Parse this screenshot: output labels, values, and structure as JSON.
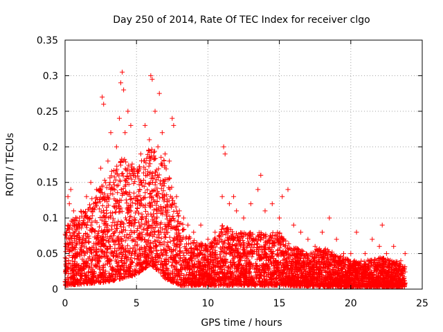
{
  "chart_data": {
    "type": "scatter",
    "title": "Day 250 of 2014, Rate Of TEC Index for receiver clgo",
    "xlabel": "GPS time / hours",
    "ylabel": "ROTI / TECUs",
    "xlim": [
      0,
      25
    ],
    "ylim": [
      0,
      0.35
    ],
    "grid": true,
    "marker": "+",
    "color": "#ff0000",
    "x_ticks": [
      0,
      5,
      10,
      15,
      20,
      25
    ],
    "x_tick_labels": [
      "0",
      "5",
      "10",
      "15",
      "20",
      "25"
    ],
    "y_ticks": [
      0,
      0.05,
      0.1,
      0.15,
      0.2,
      0.25,
      0.3,
      0.35
    ],
    "y_tick_labels": [
      "0",
      "0.05",
      "0.1",
      "0.15",
      "0.2",
      "0.25",
      "0.3",
      "0.35"
    ],
    "series": [
      {
        "name": "ROTI",
        "points": [
          [
            0.1,
            0.08
          ],
          [
            0.2,
            0.13
          ],
          [
            0.3,
            0.12
          ],
          [
            0.4,
            0.14
          ],
          [
            0.6,
            0.11
          ],
          [
            0.8,
            0.09
          ],
          [
            1.0,
            0.1
          ],
          [
            1.2,
            0.09
          ],
          [
            1.5,
            0.13
          ],
          [
            1.8,
            0.15
          ],
          [
            2.0,
            0.12
          ],
          [
            2.2,
            0.14
          ],
          [
            2.5,
            0.17
          ],
          [
            2.6,
            0.27
          ],
          [
            2.7,
            0.26
          ],
          [
            3.0,
            0.18
          ],
          [
            3.2,
            0.22
          ],
          [
            3.4,
            0.15
          ],
          [
            3.6,
            0.2
          ],
          [
            3.8,
            0.24
          ],
          [
            3.9,
            0.29
          ],
          [
            4.0,
            0.305
          ],
          [
            4.1,
            0.28
          ],
          [
            4.2,
            0.22
          ],
          [
            4.4,
            0.25
          ],
          [
            4.6,
            0.23
          ],
          [
            4.8,
            0.16
          ],
          [
            5.0,
            0.13
          ],
          [
            5.3,
            0.19
          ],
          [
            5.6,
            0.23
          ],
          [
            5.9,
            0.21
          ],
          [
            6.0,
            0.3
          ],
          [
            6.1,
            0.295
          ],
          [
            6.3,
            0.25
          ],
          [
            6.5,
            0.2
          ],
          [
            6.6,
            0.275
          ],
          [
            6.8,
            0.22
          ],
          [
            7.0,
            0.19
          ],
          [
            7.3,
            0.18
          ],
          [
            7.5,
            0.24
          ],
          [
            7.6,
            0.23
          ],
          [
            7.8,
            0.13
          ],
          [
            8.0,
            0.11
          ],
          [
            8.3,
            0.1
          ],
          [
            8.6,
            0.09
          ],
          [
            9.0,
            0.08
          ],
          [
            9.5,
            0.09
          ],
          [
            10.0,
            0.07
          ],
          [
            10.5,
            0.08
          ],
          [
            11.0,
            0.13
          ],
          [
            11.1,
            0.2
          ],
          [
            11.2,
            0.19
          ],
          [
            11.5,
            0.12
          ],
          [
            11.8,
            0.13
          ],
          [
            12.0,
            0.11
          ],
          [
            12.5,
            0.1
          ],
          [
            13.0,
            0.12
          ],
          [
            13.5,
            0.14
          ],
          [
            13.7,
            0.16
          ],
          [
            14.0,
            0.11
          ],
          [
            14.5,
            0.12
          ],
          [
            15.0,
            0.1
          ],
          [
            15.2,
            0.13
          ],
          [
            15.6,
            0.14
          ],
          [
            16.0,
            0.09
          ],
          [
            16.5,
            0.08
          ],
          [
            17.0,
            0.07
          ],
          [
            17.5,
            0.06
          ],
          [
            18.0,
            0.08
          ],
          [
            18.5,
            0.1
          ],
          [
            19.0,
            0.07
          ],
          [
            19.5,
            0.05
          ],
          [
            20.0,
            0.05
          ],
          [
            20.4,
            0.08
          ],
          [
            21.0,
            0.05
          ],
          [
            21.5,
            0.07
          ],
          [
            22.0,
            0.06
          ],
          [
            22.2,
            0.09
          ],
          [
            22.5,
            0.05
          ],
          [
            23.0,
            0.06
          ],
          [
            23.5,
            0.04
          ],
          [
            23.8,
            0.05
          ]
        ],
        "envelope": [
          [
            0,
            0.09
          ],
          [
            1,
            0.11
          ],
          [
            2,
            0.13
          ],
          [
            3,
            0.16
          ],
          [
            4,
            0.19
          ],
          [
            5,
            0.17
          ],
          [
            6,
            0.2
          ],
          [
            7,
            0.18
          ],
          [
            8,
            0.1
          ],
          [
            9,
            0.07
          ],
          [
            10,
            0.06
          ],
          [
            11,
            0.09
          ],
          [
            12,
            0.08
          ],
          [
            13,
            0.08
          ],
          [
            14,
            0.08
          ],
          [
            15,
            0.08
          ],
          [
            16,
            0.06
          ],
          [
            17,
            0.05
          ],
          [
            18,
            0.06
          ],
          [
            19,
            0.05
          ],
          [
            20,
            0.04
          ],
          [
            21,
            0.04
          ],
          [
            22,
            0.045
          ],
          [
            23,
            0.04
          ],
          [
            23.8,
            0.035
          ]
        ],
        "floor": [
          [
            0,
            0.005
          ],
          [
            3,
            0.01
          ],
          [
            5,
            0.02
          ],
          [
            6,
            0.035
          ],
          [
            7,
            0.015
          ],
          [
            8,
            0.005
          ],
          [
            12,
            0.005
          ],
          [
            15,
            0.005
          ],
          [
            20,
            0.003
          ],
          [
            23.8,
            0.003
          ]
        ]
      }
    ]
  }
}
